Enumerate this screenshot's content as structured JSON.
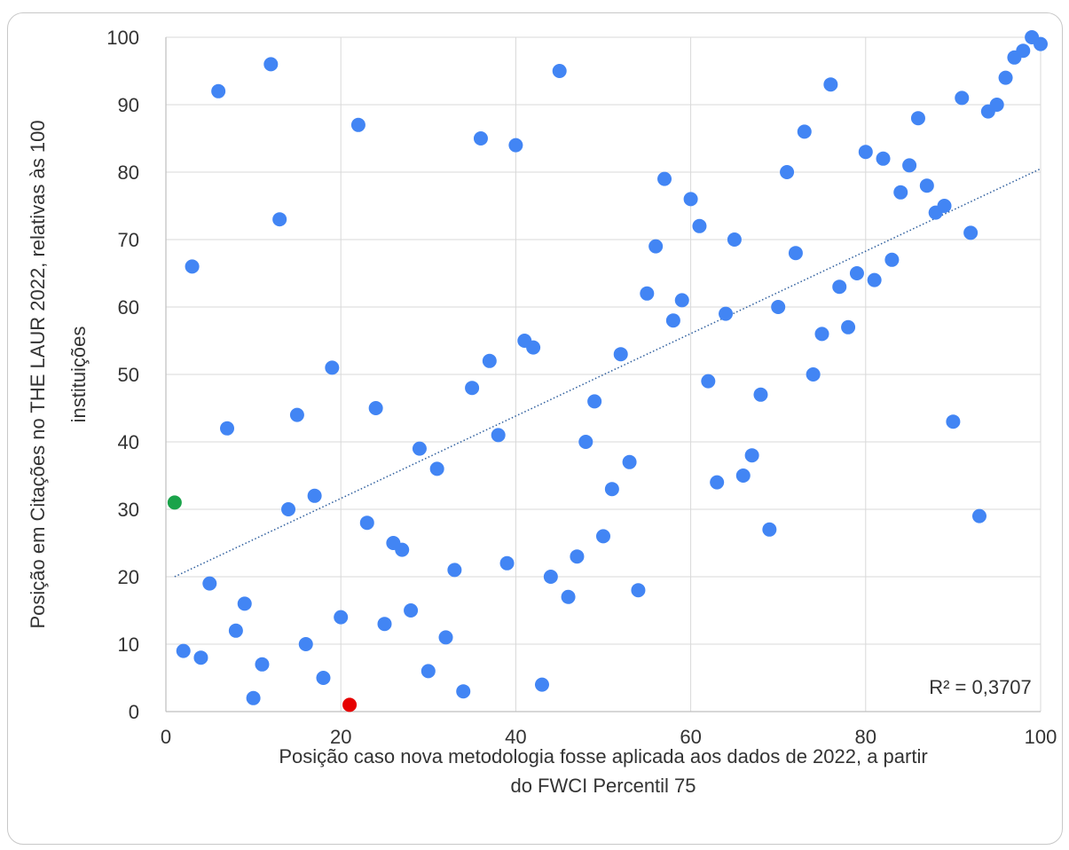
{
  "chart_data": {
    "type": "scatter",
    "title": "",
    "xlabel_lines": [
      "Posição caso nova metodologia fosse aplicada aos dados de 2022, a partir",
      "do FWCI Percentil 75"
    ],
    "ylabel_lines": [
      "Posição em Citações no THE LAUR 2022, relativas às 100",
      "instituições"
    ],
    "xlim": [
      0,
      100
    ],
    "ylim": [
      0,
      100
    ],
    "x_ticks": [
      0,
      20,
      40,
      60,
      80,
      100
    ],
    "y_ticks": [
      0,
      10,
      20,
      30,
      40,
      50,
      60,
      70,
      80,
      90,
      100
    ],
    "grid": true,
    "legend": "none",
    "point_color": "#4285f4",
    "trendline": {
      "type": "linear",
      "x": [
        1,
        100
      ],
      "y": [
        20,
        80.5
      ],
      "color": "#2f5f9e",
      "style": "dotted",
      "label": "R² = 0,3707"
    },
    "highlighted_points": [
      {
        "x": 1,
        "y": 31,
        "color": "#1aa34a"
      },
      {
        "x": 21,
        "y": 1,
        "color": "#e60000"
      }
    ],
    "points": [
      {
        "x": 2,
        "y": 9
      },
      {
        "x": 3,
        "y": 66
      },
      {
        "x": 4,
        "y": 8
      },
      {
        "x": 5,
        "y": 19
      },
      {
        "x": 6,
        "y": 92
      },
      {
        "x": 7,
        "y": 42
      },
      {
        "x": 8,
        "y": 12
      },
      {
        "x": 9,
        "y": 16
      },
      {
        "x": 10,
        "y": 2
      },
      {
        "x": 11,
        "y": 7
      },
      {
        "x": 12,
        "y": 96
      },
      {
        "x": 13,
        "y": 73
      },
      {
        "x": 14,
        "y": 30
      },
      {
        "x": 15,
        "y": 44
      },
      {
        "x": 16,
        "y": 10
      },
      {
        "x": 17,
        "y": 32
      },
      {
        "x": 18,
        "y": 5
      },
      {
        "x": 19,
        "y": 51
      },
      {
        "x": 20,
        "y": 14
      },
      {
        "x": 22,
        "y": 87
      },
      {
        "x": 23,
        "y": 28
      },
      {
        "x": 24,
        "y": 45
      },
      {
        "x": 25,
        "y": 13
      },
      {
        "x": 26,
        "y": 25
      },
      {
        "x": 27,
        "y": 24
      },
      {
        "x": 28,
        "y": 15
      },
      {
        "x": 29,
        "y": 39
      },
      {
        "x": 30,
        "y": 6
      },
      {
        "x": 31,
        "y": 36
      },
      {
        "x": 32,
        "y": 11
      },
      {
        "x": 33,
        "y": 21
      },
      {
        "x": 34,
        "y": 3
      },
      {
        "x": 35,
        "y": 48
      },
      {
        "x": 36,
        "y": 85
      },
      {
        "x": 37,
        "y": 52
      },
      {
        "x": 38,
        "y": 41
      },
      {
        "x": 39,
        "y": 22
      },
      {
        "x": 40,
        "y": 84
      },
      {
        "x": 41,
        "y": 55
      },
      {
        "x": 42,
        "y": 54
      },
      {
        "x": 43,
        "y": 4
      },
      {
        "x": 44,
        "y": 20
      },
      {
        "x": 45,
        "y": 95
      },
      {
        "x": 46,
        "y": 17
      },
      {
        "x": 47,
        "y": 23
      },
      {
        "x": 48,
        "y": 40
      },
      {
        "x": 49,
        "y": 46
      },
      {
        "x": 50,
        "y": 26
      },
      {
        "x": 51,
        "y": 33
      },
      {
        "x": 52,
        "y": 53
      },
      {
        "x": 53,
        "y": 37
      },
      {
        "x": 54,
        "y": 18
      },
      {
        "x": 55,
        "y": 62
      },
      {
        "x": 56,
        "y": 69
      },
      {
        "x": 57,
        "y": 79
      },
      {
        "x": 58,
        "y": 58
      },
      {
        "x": 59,
        "y": 61
      },
      {
        "x": 60,
        "y": 76
      },
      {
        "x": 61,
        "y": 72
      },
      {
        "x": 62,
        "y": 49
      },
      {
        "x": 63,
        "y": 34
      },
      {
        "x": 64,
        "y": 59
      },
      {
        "x": 65,
        "y": 70
      },
      {
        "x": 66,
        "y": 35
      },
      {
        "x": 67,
        "y": 38
      },
      {
        "x": 68,
        "y": 47
      },
      {
        "x": 69,
        "y": 27
      },
      {
        "x": 70,
        "y": 60
      },
      {
        "x": 71,
        "y": 80
      },
      {
        "x": 72,
        "y": 68
      },
      {
        "x": 73,
        "y": 86
      },
      {
        "x": 74,
        "y": 50
      },
      {
        "x": 75,
        "y": 56
      },
      {
        "x": 76,
        "y": 93
      },
      {
        "x": 77,
        "y": 63
      },
      {
        "x": 78,
        "y": 57
      },
      {
        "x": 79,
        "y": 65
      },
      {
        "x": 80,
        "y": 83
      },
      {
        "x": 81,
        "y": 64
      },
      {
        "x": 82,
        "y": 82
      },
      {
        "x": 83,
        "y": 67
      },
      {
        "x": 84,
        "y": 77
      },
      {
        "x": 85,
        "y": 81
      },
      {
        "x": 86,
        "y": 88
      },
      {
        "x": 87,
        "y": 78
      },
      {
        "x": 88,
        "y": 74
      },
      {
        "x": 89,
        "y": 75
      },
      {
        "x": 90,
        "y": 43
      },
      {
        "x": 91,
        "y": 91
      },
      {
        "x": 92,
        "y": 71
      },
      {
        "x": 93,
        "y": 29
      },
      {
        "x": 94,
        "y": 89
      },
      {
        "x": 95,
        "y": 90
      },
      {
        "x": 96,
        "y": 94
      },
      {
        "x": 97,
        "y": 97
      },
      {
        "x": 98,
        "y": 98
      },
      {
        "x": 99,
        "y": 100
      },
      {
        "x": 100,
        "y": 99
      }
    ]
  }
}
